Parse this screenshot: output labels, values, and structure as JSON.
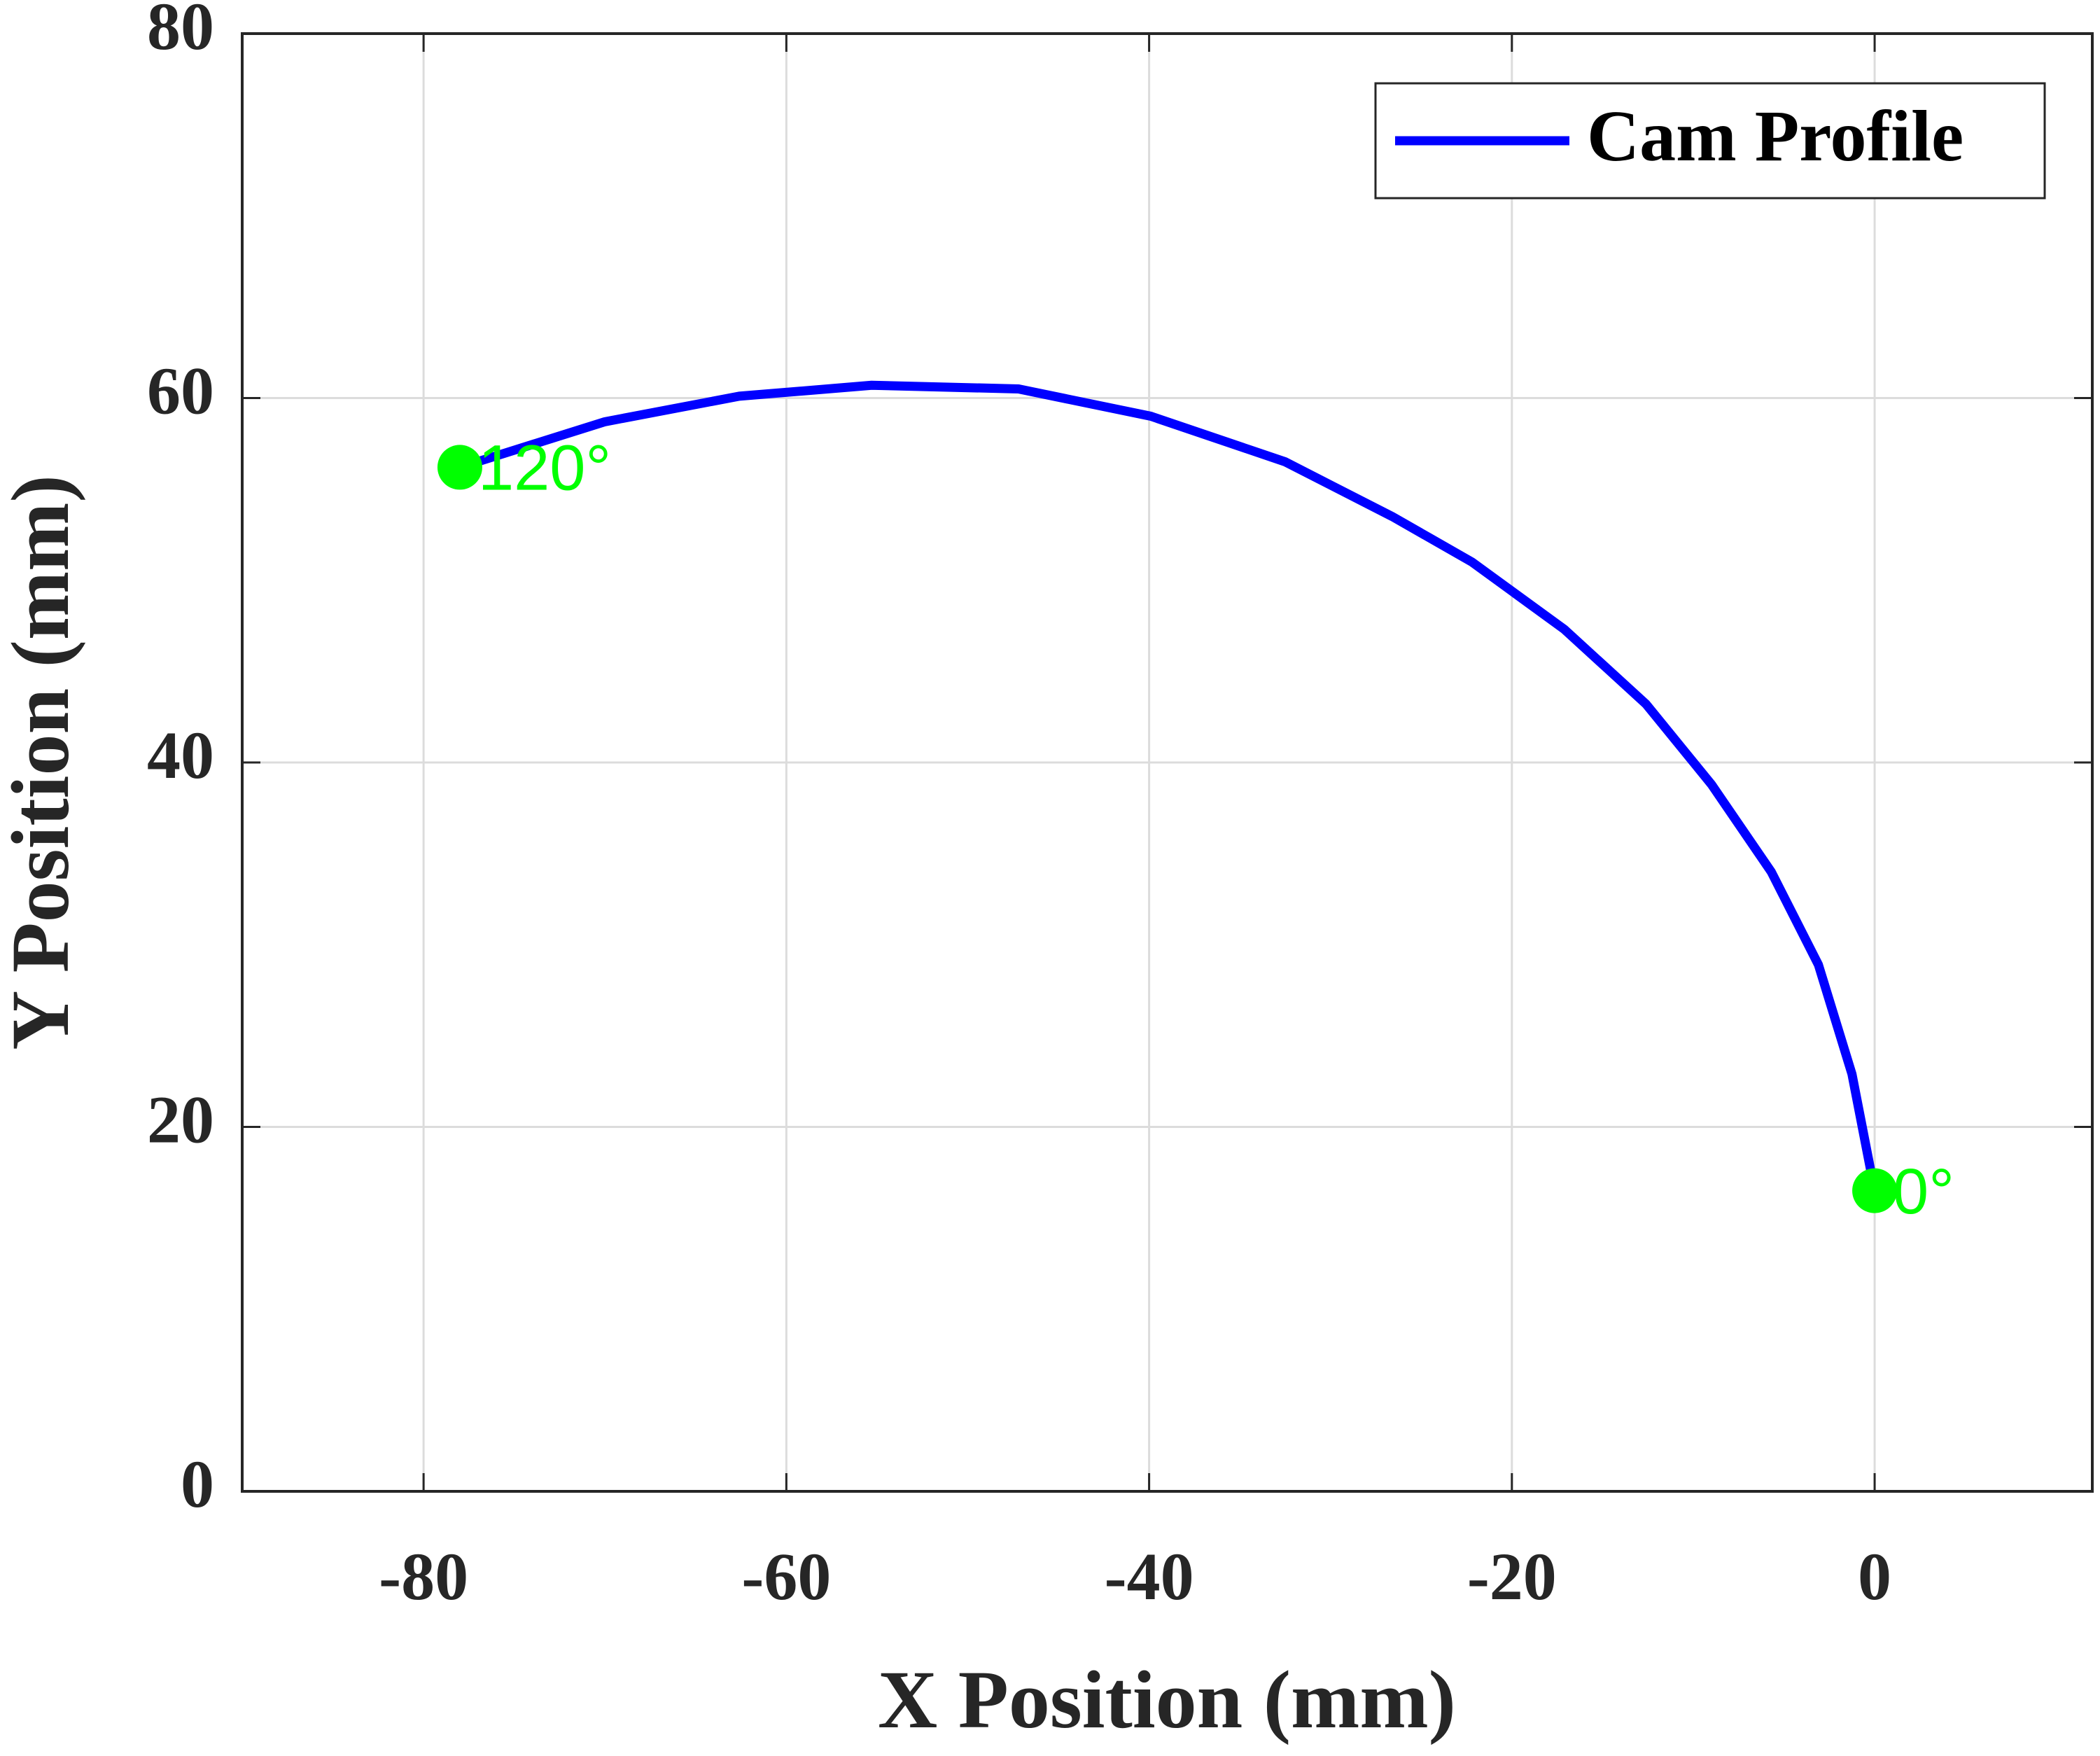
{
  "chart_data": {
    "type": "line",
    "x_label": "X Position (mm)",
    "y_label": "Y Position (mm)",
    "series": [
      {
        "name": "Cam Profile",
        "color": "#0000ff",
        "x": [
          0,
          -1.25,
          -3.1,
          -5.7,
          -9.0,
          -12.6,
          -17.1,
          -22.2,
          -26.6,
          -32.5,
          -39.9,
          -47.2,
          -55.3,
          -62.6,
          -70.0,
          -78.0
        ],
        "values": [
          16.5,
          22.9,
          28.9,
          34.0,
          38.8,
          43.2,
          47.3,
          51.0,
          53.5,
          56.5,
          59.0,
          60.5,
          60.7,
          60.1,
          58.7,
          56.2
        ]
      }
    ],
    "annotations": [
      {
        "text": "0°",
        "x": 0,
        "y": 16.5
      },
      {
        "text": "120°",
        "x": -78.0,
        "y": 56.2
      }
    ],
    "marker_color": "#00ff00",
    "xlim": [
      -90,
      12
    ],
    "xticks": [
      -80,
      -60,
      -40,
      -20,
      0
    ],
    "ylim": [
      0,
      80
    ],
    "yticks": [
      0,
      20,
      40,
      60,
      80
    ],
    "grid": true,
    "legend": "upper right"
  }
}
